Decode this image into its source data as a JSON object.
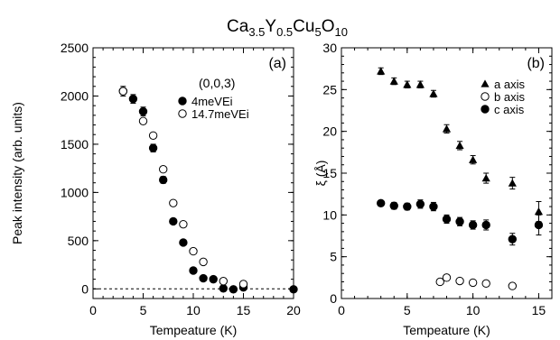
{
  "figure": {
    "title_main": "Ca",
    "title_sub1": "3.5",
    "title_mid1": "Y",
    "title_sub2": "0.5",
    "title_mid2": "Cu",
    "title_sub3": "5",
    "title_mid3": "O",
    "title_sub4": "10"
  },
  "chart_data": [
    {
      "type": "scatter",
      "panel_label": "(a)",
      "annotation": "(0,0,3)",
      "xlabel": "Tempeature (K)",
      "ylabel": "Peak intensity (arb. units)",
      "xlim": [
        0,
        20
      ],
      "ylim": [
        -100,
        2500
      ],
      "xticks": [
        0,
        5,
        10,
        15,
        20
      ],
      "yticks": [
        0,
        500,
        1000,
        1500,
        2000,
        2500
      ],
      "minor_x_step": 1,
      "minor_y_step": 100,
      "zero_line": true,
      "legend_position": "upper-right",
      "series": [
        {
          "name": "4meVEi",
          "marker": "filled-circle",
          "x": [
            3,
            4,
            5,
            6,
            7,
            8,
            9,
            10,
            11,
            12,
            13,
            14,
            15,
            20
          ],
          "y": [
            2050,
            1970,
            1840,
            1460,
            1130,
            700,
            480,
            190,
            110,
            100,
            5,
            -5,
            15,
            -5
          ],
          "yerr": [
            50,
            45,
            45,
            40,
            35,
            0,
            0,
            0,
            0,
            0,
            0,
            0,
            0,
            0
          ]
        },
        {
          "name": "14.7meVEi",
          "marker": "open-circle",
          "x": [
            3,
            5,
            6,
            7,
            8,
            9,
            10,
            11,
            13,
            15
          ],
          "y": [
            2050,
            1740,
            1590,
            1240,
            890,
            670,
            390,
            280,
            80,
            50
          ],
          "yerr": [
            0,
            0,
            0,
            0,
            0,
            0,
            0,
            0,
            0,
            0
          ]
        }
      ]
    },
    {
      "type": "scatter",
      "panel_label": "(b)",
      "xlabel": "Tempeature (K)",
      "ylabel": "ξ (Å)",
      "xlim": [
        0,
        16
      ],
      "ylim": [
        0,
        30
      ],
      "xticks": [
        0,
        5,
        10,
        15
      ],
      "yticks": [
        0,
        5,
        10,
        15,
        20,
        25,
        30
      ],
      "minor_x_step": 1,
      "minor_y_step": 1,
      "legend_position": "upper-right",
      "series": [
        {
          "name": "a axis",
          "marker": "filled-triangle",
          "x": [
            3,
            4,
            5,
            6,
            7,
            8,
            9,
            10,
            11,
            13,
            15
          ],
          "y": [
            27.2,
            26.0,
            25.6,
            25.6,
            24.5,
            20.3,
            18.3,
            16.6,
            14.4,
            13.8,
            10.4
          ],
          "yerr": [
            0.4,
            0.4,
            0.4,
            0.4,
            0.4,
            0.5,
            0.5,
            0.5,
            0.6,
            0.7,
            1.2
          ]
        },
        {
          "name": "b axis",
          "marker": "open-circle",
          "x": [
            7.5,
            8,
            9,
            10,
            11,
            13
          ],
          "y": [
            2.0,
            2.5,
            2.1,
            1.9,
            1.8,
            1.5
          ],
          "yerr": [
            0,
            0,
            0,
            0,
            0,
            0
          ]
        },
        {
          "name": "c axis",
          "marker": "filled-circle",
          "x": [
            3,
            4,
            5,
            6,
            7,
            8,
            9,
            10,
            11,
            13,
            15
          ],
          "y": [
            11.4,
            11.1,
            11.0,
            11.3,
            11.0,
            9.5,
            9.2,
            8.8,
            8.8,
            7.1,
            8.8
          ],
          "yerr": [
            0.3,
            0.4,
            0.4,
            0.5,
            0.5,
            0.5,
            0.5,
            0.5,
            0.6,
            0.7,
            1.2
          ]
        }
      ]
    }
  ]
}
